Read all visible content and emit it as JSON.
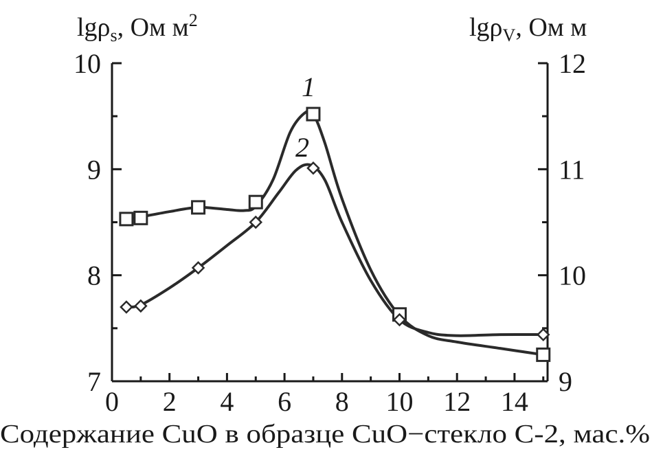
{
  "chart_data": {
    "type": "line",
    "xlabel": "Содержание CuO в образце CuO−стекло С-2, мас.%",
    "ylabel_left": "lgρ",
    "ylabel_left_sub": "s",
    "ylabel_left_unit": ", Ом м",
    "ylabel_left_sup": "2",
    "ylabel_right": "lgρ",
    "ylabel_right_sub": "V",
    "ylabel_right_unit": ", Ом м",
    "xlim": [
      0,
      15
    ],
    "ylim_left": [
      7,
      10
    ],
    "ylim_right": [
      9,
      12
    ],
    "x_ticks": [
      "0",
      "2",
      "4",
      "6",
      "8",
      "10",
      "12",
      "14"
    ],
    "y_left_ticks": [
      "7",
      "8",
      "9",
      "10"
    ],
    "y_right_ticks": [
      "9",
      "10",
      "11",
      "12"
    ],
    "series": [
      {
        "label": "1",
        "marker": "square",
        "axis": "left",
        "points": [
          [
            0.5,
            8.53
          ],
          [
            1,
            8.54
          ],
          [
            3,
            8.64
          ],
          [
            5,
            8.69
          ],
          [
            7,
            9.52
          ],
          [
            10,
            7.63
          ],
          [
            15,
            7.25
          ]
        ],
        "curve": [
          [
            0.5,
            8.53
          ],
          [
            1,
            8.55
          ],
          [
            2,
            8.6
          ],
          [
            3,
            8.64
          ],
          [
            4,
            8.62
          ],
          [
            4.6,
            8.61
          ],
          [
            5,
            8.65
          ],
          [
            5.6,
            8.9
          ],
          [
            6.2,
            9.35
          ],
          [
            6.7,
            9.53
          ],
          [
            7,
            9.52
          ],
          [
            7.4,
            9.25
          ],
          [
            8,
            8.72
          ],
          [
            9,
            8.05
          ],
          [
            10,
            7.62
          ],
          [
            11,
            7.43
          ],
          [
            12,
            7.37
          ],
          [
            13.5,
            7.31
          ],
          [
            15,
            7.25
          ]
        ]
      },
      {
        "label": "2",
        "marker": "diamond",
        "axis": "left",
        "points": [
          [
            0.5,
            7.7
          ],
          [
            1,
            7.71
          ],
          [
            3,
            8.07
          ],
          [
            5,
            8.5
          ],
          [
            7,
            9.01
          ],
          [
            10,
            7.58
          ],
          [
            15,
            7.44
          ]
        ],
        "curve": [
          [
            0.5,
            7.7
          ],
          [
            1,
            7.72
          ],
          [
            2,
            7.88
          ],
          [
            3,
            8.07
          ],
          [
            4,
            8.28
          ],
          [
            5,
            8.5
          ],
          [
            5.8,
            8.78
          ],
          [
            6.4,
            8.99
          ],
          [
            6.9,
            9.04
          ],
          [
            7.4,
            8.9
          ],
          [
            8,
            8.5
          ],
          [
            9,
            7.95
          ],
          [
            10,
            7.58
          ],
          [
            11,
            7.46
          ],
          [
            12,
            7.43
          ],
          [
            13.5,
            7.44
          ],
          [
            15,
            7.44
          ]
        ]
      }
    ]
  }
}
